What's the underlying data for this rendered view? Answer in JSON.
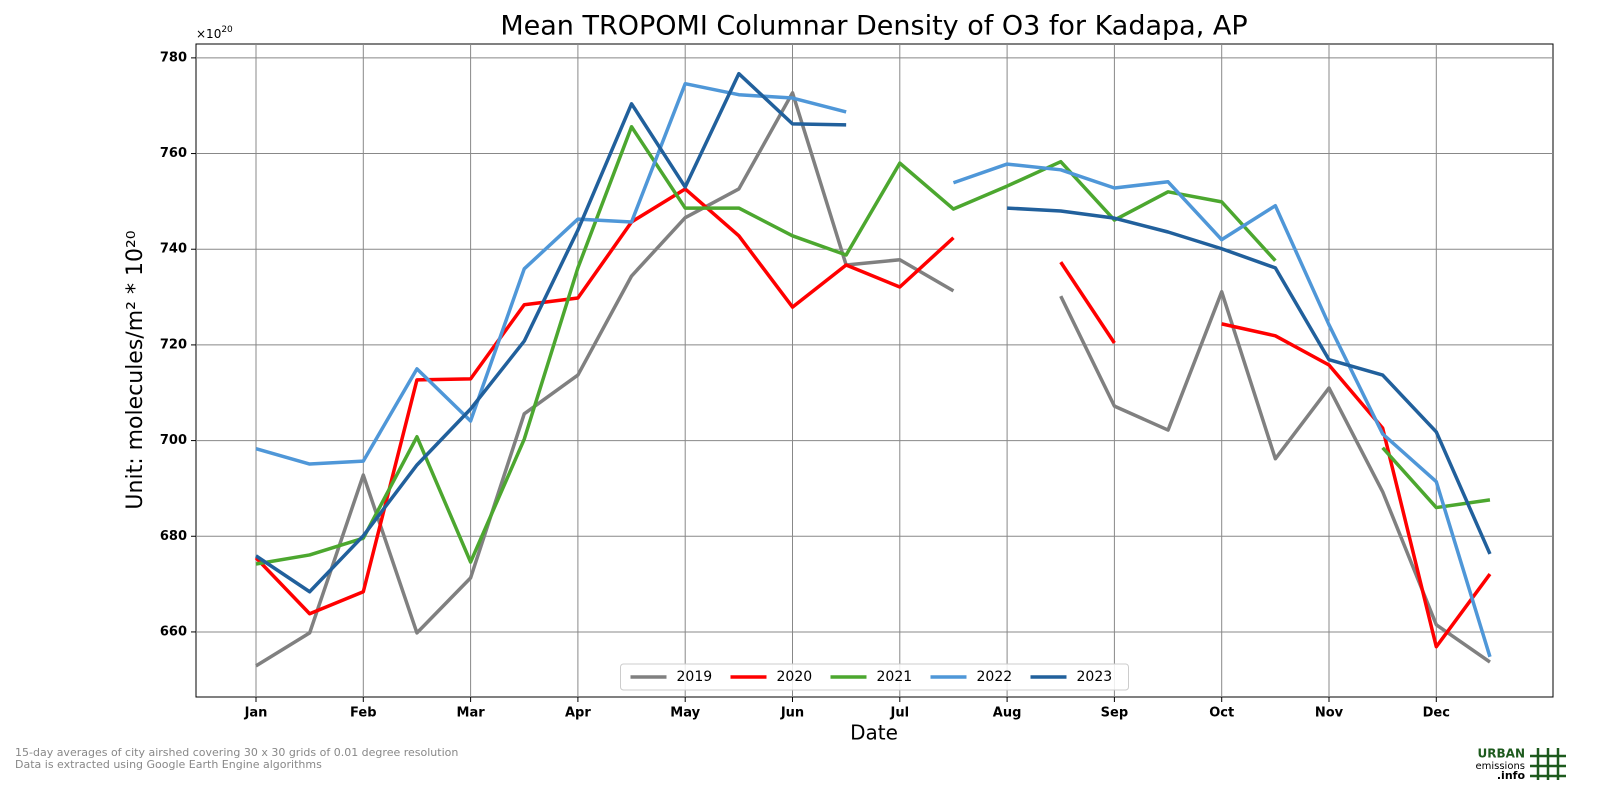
{
  "chart_data": {
    "type": "line",
    "title": "Mean TROPOMI Columnar Density of O3 for Kadapa, AP",
    "xlabel": "Date",
    "ylabel": "Unit: molecules/m² * 10²⁰",
    "y_offset": {
      "base": "×10",
      "exponent": "20"
    },
    "categories": [
      "Jan",
      null,
      "Feb",
      null,
      "Mar",
      null,
      "Apr",
      null,
      "May",
      null,
      "Jun",
      null,
      "Jul",
      null,
      "Aug",
      null,
      "Sep",
      null,
      "Oct",
      null,
      "Nov",
      null,
      "Dec",
      null
    ],
    "ylim": [
      646.4,
      782.9
    ],
    "yticks": [
      660,
      680,
      700,
      720,
      740,
      760,
      780
    ],
    "grid": true,
    "legend": "lower center",
    "series": [
      {
        "name": "2019",
        "color": "#808080",
        "values": [
          652.9,
          659.8,
          692.8,
          659.8,
          671.3,
          705.6,
          713.7,
          734.4,
          746.6,
          752.6,
          772.7,
          736.7,
          737.8,
          731.3,
          null,
          730.2,
          707.2,
          702.2,
          731.1,
          696.2,
          711.0,
          689.3,
          661.5,
          653.7
        ]
      },
      {
        "name": "2020",
        "color": "#ff0000",
        "values": [
          675.5,
          663.8,
          668.4,
          712.7,
          712.9,
          728.4,
          729.8,
          745.7,
          752.6,
          742.8,
          727.9,
          736.7,
          732.1,
          742.4,
          null,
          737.3,
          720.4,
          null,
          724.4,
          721.9,
          715.8,
          702.6,
          656.9,
          672.1
        ]
      },
      {
        "name": "2021",
        "color": "#4ca72f",
        "values": [
          674.2,
          676.1,
          679.6,
          700.8,
          674.6,
          700.3,
          736.1,
          765.6,
          748.6,
          748.6,
          742.8,
          738.8,
          758.0,
          748.4,
          753.2,
          758.3,
          746.1,
          752.0,
          749.9,
          737.6,
          null,
          698.5,
          686.0,
          687.6
        ]
      },
      {
        "name": "2022",
        "color": "#4f97d8",
        "values": [
          698.3,
          695.1,
          695.7,
          715.0,
          704.1,
          735.9,
          746.3,
          745.7,
          774.6,
          772.3,
          771.6,
          768.7,
          null,
          753.9,
          757.8,
          756.6,
          752.8,
          754.1,
          742.0,
          749.1,
          724.2,
          701.4,
          691.4,
          654.8
        ]
      },
      {
        "name": "2023",
        "color": "#21609c",
        "values": [
          675.9,
          668.4,
          680.1,
          694.9,
          706.6,
          720.8,
          744.0,
          770.4,
          753.0,
          776.7,
          766.2,
          766.0,
          null,
          null,
          748.6,
          748.0,
          746.5,
          743.6,
          740.1,
          736.1,
          716.9,
          713.7,
          701.8,
          676.3
        ]
      }
    ]
  },
  "footnotes": [
    "15-day averages of city airshed covering 30 x 30 grids of 0.01 degree resolution",
    "Data is extracted using Google Earth Engine algorithms"
  ],
  "logo": [
    "URBAN",
    "emissions",
    ".info"
  ]
}
